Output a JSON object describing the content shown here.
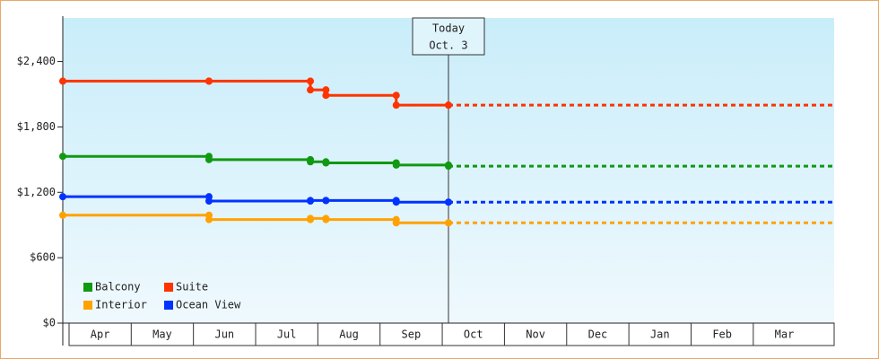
{
  "chart_data": {
    "type": "step-line",
    "x_categories": [
      "Apr",
      "May",
      "Jun",
      "Jul",
      "Aug",
      "Sep",
      "Oct",
      "Nov",
      "Dec",
      "Jan",
      "Feb",
      "Mar"
    ],
    "x": [
      -0.1,
      2.25,
      3.88,
      4.13,
      5.26,
      6.1
    ],
    "xlim": [
      -0.1,
      12.3
    ],
    "series": [
      {
        "name": "Balcony",
        "color": "#119911",
        "values": [
          1530,
          1500,
          1480,
          1470,
          1450,
          1440
        ]
      },
      {
        "name": "Suite",
        "color": "#ff3300",
        "values": [
          2220,
          2220,
          2140,
          2090,
          2000,
          2000
        ]
      },
      {
        "name": "Interior",
        "color": "#ffa200",
        "values": [
          990,
          950,
          960,
          950,
          920,
          920
        ]
      },
      {
        "name": "Ocean View",
        "color": "#0033ff",
        "values": [
          1160,
          1120,
          1125,
          1125,
          1110,
          1110
        ]
      }
    ],
    "ylim": [
      0,
      2800
    ],
    "yticks": [
      {
        "value": 0,
        "label": "$0"
      },
      {
        "value": 600,
        "label": "$600"
      },
      {
        "value": 1200,
        "label": "$1,200"
      },
      {
        "value": 1800,
        "label": "$1,800"
      },
      {
        "value": 2400,
        "label": "$2,400"
      }
    ],
    "today": {
      "x": 6.1,
      "label": [
        "Today",
        "Oct. 3"
      ]
    }
  }
}
